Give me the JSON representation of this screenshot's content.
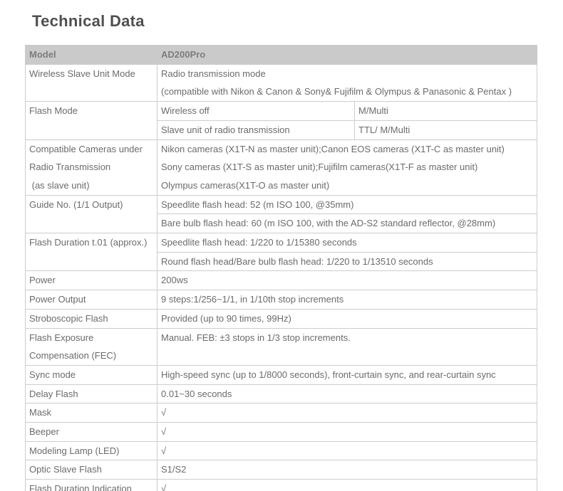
{
  "page_title": "Technical Data",
  "colors": {
    "header_bg": "#cacaca",
    "border": "#cdcdcd",
    "title_text": "#4f4f4f",
    "header_text": "#7d7d7d",
    "body_text": "#6b6b6b"
  },
  "table": {
    "header": {
      "label": "Model",
      "value": "AD200Pro"
    },
    "rows": {
      "wireless_slave": {
        "label": "Wireless Slave Unit Mode",
        "line1": "Radio transmission mode",
        "line2": "(compatible with Nikon & Canon & Sony& Fujifilm & Olympus & Panasonic & Pentax )"
      },
      "flash_mode": {
        "label": "Flash Mode",
        "sub1_mode": "Wireless off",
        "sub1_value": "M/Multi",
        "sub2_mode": "Slave unit of radio transmission",
        "sub2_value": "TTL/ M/Multi"
      },
      "compatible_cameras": {
        "label_line1": "Compatible Cameras under",
        "label_line2": "Radio Transmission",
        "label_line3": " (as slave unit)",
        "line1": "Nikon cameras (X1T-N as master unit);Canon EOS cameras (X1T-C as master unit)",
        "line2": "Sony cameras (X1T-S as master unit);Fujifilm cameras(X1T-F as master unit)",
        "line3": "Olympus cameras(X1T-O as master unit)"
      },
      "guide_no": {
        "label": "Guide No. (1/1 Output)",
        "sub1": "Speedlite flash head: 52 (m ISO 100, @35mm)",
        "sub2": "Bare bulb flash head: 60 (m ISO 100, with the AD-S2 standard reflector, @28mm)"
      },
      "flash_duration": {
        "label": "Flash Duration t.01 (approx.)",
        "sub1": "Speedlite flash head: 1/220 to 1/15380 seconds",
        "sub2": "Round flash head/Bare bulb flash head: 1/220 to 1/13510 seconds"
      },
      "power": {
        "label": "Power",
        "value": "200ws"
      },
      "power_output": {
        "label": "Power Output",
        "value": "9 steps:1/256~1/1, in 1/10th stop increments"
      },
      "stroboscopic": {
        "label": "Stroboscopic Flash",
        "value": "Provided (up to 90 times, 99Hz)"
      },
      "fec": {
        "label_line1": "Flash Exposure",
        "label_line2": "Compensation (FEC)",
        "value": "Manual. FEB: ±3 stops in 1/3 stop increments."
      },
      "sync_mode": {
        "label": "Sync mode",
        "value": "High-speed sync (up to 1/8000 seconds), front-curtain sync, and rear-curtain sync"
      },
      "delay_flash": {
        "label": "Delay Flash",
        "value": "0.01~30 seconds"
      },
      "mask": {
        "label": "Mask",
        "value": "√"
      },
      "beeper": {
        "label": "Beeper",
        "value": "√"
      },
      "modeling_lamp": {
        "label": "Modeling Lamp (LED)",
        "value": "√"
      },
      "optic_slave": {
        "label": "Optic Slave Flash",
        "value": "S1/S2"
      },
      "flash_duration_indication": {
        "label": "Flash Duration Indication",
        "value": "√"
      }
    }
  }
}
